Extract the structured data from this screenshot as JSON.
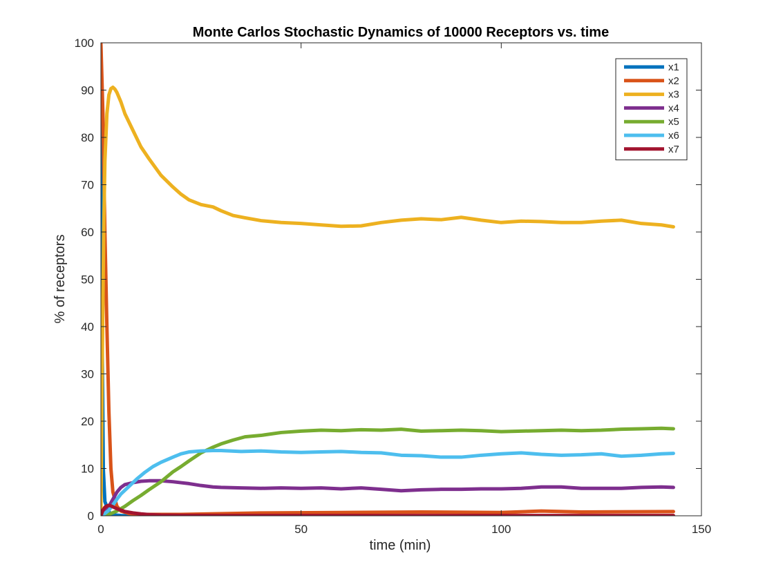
{
  "chart_data": {
    "type": "line",
    "title": "Monte Carlos Stochastic Dynamics of 10000 Receptors vs. time",
    "xlabel": "time (min)",
    "ylabel": "% of receptors",
    "xlim": [
      0,
      150
    ],
    "ylim": [
      0,
      100
    ],
    "xticks": [
      0,
      50,
      100,
      150
    ],
    "yticks": [
      0,
      10,
      20,
      30,
      40,
      50,
      60,
      70,
      80,
      90,
      100
    ],
    "grid": false,
    "legend_position": "top-right",
    "series": [
      {
        "name": "x1",
        "color": "#0072BD",
        "x": [
          0,
          0.3,
          0.6,
          1.0,
          2,
          3,
          5,
          10,
          143
        ],
        "y": [
          100,
          40,
          10,
          3,
          0.8,
          0.2,
          0.05,
          0,
          0
        ]
      },
      {
        "name": "x2",
        "color": "#D95319",
        "x": [
          0,
          0.5,
          1,
          1.5,
          2,
          2.5,
          3,
          4,
          5,
          7,
          10,
          20,
          40,
          60,
          80,
          100,
          110,
          120,
          143
        ],
        "y": [
          100,
          85,
          60,
          40,
          22,
          10,
          5,
          2,
          1,
          0.5,
          0.3,
          0.3,
          0.6,
          0.7,
          0.8,
          0.7,
          1.0,
          0.8,
          0.9
        ]
      },
      {
        "name": "x3",
        "color": "#EDB120",
        "x": [
          0,
          0.3,
          0.7,
          1,
          1.5,
          2,
          2.5,
          3,
          3.5,
          4,
          5,
          6,
          8,
          10,
          12,
          15,
          18,
          20,
          22,
          25,
          28,
          30,
          33,
          36,
          40,
          45,
          50,
          55,
          60,
          65,
          70,
          75,
          80,
          85,
          90,
          95,
          100,
          105,
          110,
          115,
          120,
          125,
          130,
          135,
          140,
          143
        ],
        "y": [
          0,
          30,
          60,
          75,
          85,
          89,
          90.3,
          90.6,
          90.2,
          89.5,
          87.5,
          85,
          81.5,
          78,
          75.5,
          72,
          69.5,
          68,
          66.8,
          65.8,
          65.3,
          64.5,
          63.5,
          63,
          62.4,
          62,
          61.8,
          61.5,
          61.2,
          61.3,
          62,
          62.5,
          62.8,
          62.6,
          63.1,
          62.5,
          62,
          62.3,
          62.2,
          62,
          62,
          62.3,
          62.5,
          61.8,
          61.5,
          61.1
        ]
      },
      {
        "name": "x4",
        "color": "#7E2F8E",
        "x": [
          0,
          1,
          2,
          3,
          4,
          5,
          6,
          8,
          10,
          12,
          15,
          18,
          20,
          22,
          25,
          28,
          30,
          35,
          40,
          45,
          50,
          55,
          60,
          65,
          70,
          75,
          80,
          85,
          90,
          95,
          100,
          105,
          110,
          115,
          120,
          125,
          130,
          135,
          140,
          143
        ],
        "y": [
          0,
          0.8,
          2,
          3.5,
          5,
          6,
          6.6,
          7,
          7.3,
          7.4,
          7.4,
          7.2,
          7,
          6.8,
          6.4,
          6.1,
          6,
          5.9,
          5.8,
          5.9,
          5.8,
          5.9,
          5.7,
          5.9,
          5.6,
          5.3,
          5.5,
          5.6,
          5.6,
          5.7,
          5.7,
          5.8,
          6.1,
          6.1,
          5.8,
          5.8,
          5.8,
          6,
          6.1,
          6
        ]
      },
      {
        "name": "x5",
        "color": "#77AC30",
        "x": [
          0,
          2,
          4,
          6,
          8,
          10,
          12,
          15,
          18,
          20,
          22,
          25,
          28,
          30,
          33,
          36,
          40,
          45,
          50,
          55,
          60,
          65,
          70,
          75,
          80,
          85,
          90,
          95,
          100,
          105,
          110,
          115,
          120,
          125,
          130,
          135,
          140,
          143
        ],
        "y": [
          0,
          0.3,
          1,
          2,
          3.2,
          4.3,
          5.5,
          7.2,
          9.3,
          10.4,
          11.6,
          13.3,
          14.5,
          15.2,
          16,
          16.7,
          17,
          17.6,
          17.9,
          18.1,
          18,
          18.2,
          18.1,
          18.3,
          17.9,
          18,
          18.1,
          18,
          17.8,
          17.9,
          18,
          18.1,
          18,
          18.1,
          18.3,
          18.4,
          18.5,
          18.4
        ]
      },
      {
        "name": "x6",
        "color": "#4DBEEE",
        "x": [
          0,
          1,
          2,
          3,
          4,
          5,
          7,
          9,
          11,
          13,
          15,
          18,
          20,
          22,
          25,
          28,
          30,
          35,
          40,
          45,
          50,
          55,
          60,
          65,
          70,
          75,
          80,
          85,
          90,
          95,
          100,
          105,
          110,
          115,
          120,
          125,
          130,
          135,
          140,
          143
        ],
        "y": [
          0,
          0.5,
          1.2,
          2.3,
          3.5,
          4.6,
          6.2,
          7.8,
          9.2,
          10.4,
          11.3,
          12.4,
          13.1,
          13.5,
          13.7,
          13.8,
          13.8,
          13.6,
          13.7,
          13.5,
          13.4,
          13.5,
          13.6,
          13.4,
          13.3,
          12.8,
          12.7,
          12.4,
          12.4,
          12.8,
          13.1,
          13.3,
          13,
          12.8,
          12.9,
          13.1,
          12.6,
          12.8,
          13.1,
          13.2
        ]
      },
      {
        "name": "x7",
        "color": "#A2142F",
        "x": [
          0,
          0.5,
          1,
          1.5,
          2,
          2.5,
          3,
          4,
          5,
          6,
          8,
          10,
          12,
          15,
          20,
          30,
          143
        ],
        "y": [
          0,
          1.2,
          1.8,
          2.1,
          2.2,
          2.1,
          1.9,
          1.5,
          1.2,
          0.9,
          0.6,
          0.4,
          0.25,
          0.15,
          0.1,
          0.05,
          0.05
        ]
      }
    ]
  }
}
